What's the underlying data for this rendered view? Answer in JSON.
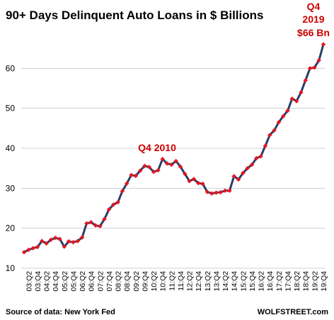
{
  "chart_data": {
    "type": "line",
    "title": "90+ Days Delinquent Auto Loans in $ Billions",
    "xlabel": "",
    "ylabel": "",
    "ylim": [
      10,
      70
    ],
    "yticks": [
      10,
      20,
      30,
      40,
      50,
      60
    ],
    "grid": "horizontal",
    "x": [
      "03:Q1",
      "03:Q2",
      "03:Q3",
      "03:Q4",
      "04:Q1",
      "04:Q2",
      "04:Q3",
      "04:Q4",
      "05:Q1",
      "05:Q2",
      "05:Q3",
      "05:Q4",
      "06:Q1",
      "06:Q2",
      "06:Q3",
      "06:Q4",
      "07:Q1",
      "07:Q2",
      "07:Q3",
      "07:Q4",
      "08:Q1",
      "08:Q2",
      "08:Q3",
      "08:Q4",
      "09:Q1",
      "09:Q2",
      "09:Q3",
      "09:Q4",
      "10:Q1",
      "10:Q2",
      "10:Q3",
      "10:Q4",
      "11:Q1",
      "11:Q2",
      "11:Q3",
      "11:Q4",
      "12:Q1",
      "12:Q2",
      "12:Q3",
      "12:Q4",
      "13:Q1",
      "13:Q2",
      "13:Q3",
      "13:Q4",
      "14:Q1",
      "14:Q2",
      "14:Q3",
      "14:Q4",
      "15:Q1",
      "15:Q2",
      "15:Q3",
      "15:Q4",
      "16:Q1",
      "16:Q2",
      "16:Q3",
      "16:Q4",
      "17:Q1",
      "17:Q2",
      "17:Q3",
      "17:Q4",
      "18:Q1",
      "18:Q2",
      "18:Q3",
      "18:Q4",
      "19:Q1",
      "19:Q2",
      "19:Q3",
      "19:Q4"
    ],
    "xticklabels": [
      "03:Q2",
      "03:Q4",
      "04:Q2",
      "04:Q4",
      "05:Q2",
      "05:Q4",
      "06:Q2",
      "06:Q4",
      "07:Q2",
      "07:Q4",
      "08:Q2",
      "08:Q4",
      "09:Q2",
      "09:Q4",
      "10:Q2",
      "10:Q4",
      "11:Q2",
      "11:Q4",
      "12:Q2",
      "12:Q4",
      "13:Q2",
      "13:Q4",
      "14:Q2",
      "14:Q4",
      "15:Q2",
      "15:Q4",
      "16:Q2",
      "16:Q4",
      "17:Q2",
      "17:Q4",
      "18:Q2",
      "18:Q4",
      "19:Q2",
      "19:Q4"
    ],
    "series": [
      {
        "name": "",
        "values": [
          14.0,
          14.6,
          15.0,
          15.3,
          16.8,
          16.2,
          17.1,
          17.6,
          17.3,
          15.4,
          16.7,
          16.5,
          16.8,
          17.7,
          21.2,
          21.5,
          20.7,
          20.5,
          22.3,
          24.7,
          25.9,
          26.5,
          29.3,
          31.2,
          33.3,
          33.1,
          34.4,
          35.6,
          35.3,
          34.1,
          34.5,
          37.3,
          36.2,
          35.9,
          36.8,
          35.4,
          33.6,
          31.8,
          32.3,
          31.3,
          31.1,
          29.1,
          28.7,
          28.9,
          29.0,
          29.4,
          29.4,
          33.0,
          32.2,
          33.8,
          35.0,
          35.9,
          37.5,
          38.0,
          40.6,
          43.3,
          44.5,
          46.5,
          48.0,
          49.4,
          52.4,
          51.8,
          54.0,
          57.0,
          60.0,
          60.2,
          62.0,
          66.0
        ]
      }
    ],
    "colors": {
      "line": "#2c3e66",
      "marker": "#e8141e",
      "annotation": "#cc0000",
      "grid": "#d0d0d0"
    },
    "annotations": [
      {
        "text": "Q4 2010",
        "x": "10:Q4",
        "y": 37.3
      },
      {
        "text": "Q4",
        "x": "19:Q4",
        "y": 66.0
      },
      {
        "text": "2019",
        "x": "19:Q4",
        "y": 66.0
      },
      {
        "text": "$66 Bn",
        "x": "19:Q4",
        "y": 66.0
      }
    ]
  },
  "footer": {
    "source": "Source of data: New York Fed",
    "brand": "WOLFSTREET.com"
  }
}
